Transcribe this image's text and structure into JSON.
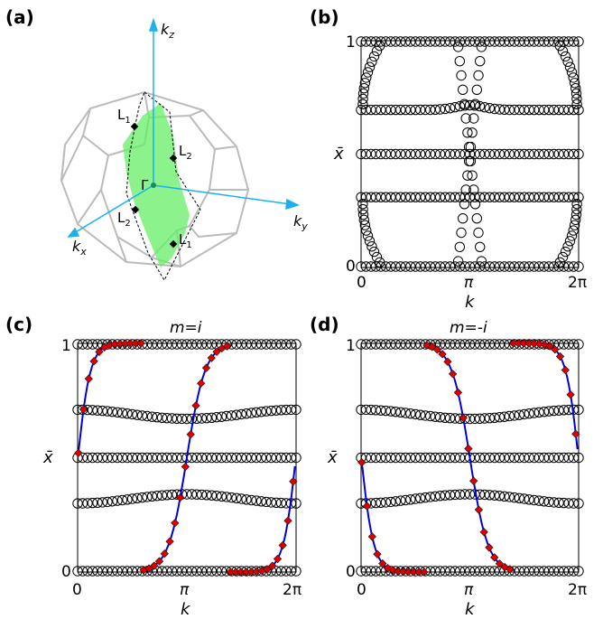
{
  "panel_a": {
    "label": "(a)",
    "axes": {
      "kz": "k",
      "kz_sub": "z",
      "ky": "k",
      "ky_sub": "y",
      "kx": "k",
      "kx_sub": "x"
    },
    "points": {
      "L1_top": "L",
      "L1_top_sub": "1",
      "L2_right": "L",
      "L2_right_sub": "2",
      "Gamma": "Γ",
      "L2_left": "L",
      "L2_left_sub": "2",
      "L1_bottom": "L",
      "L1_bottom_sub": "1"
    },
    "colors": {
      "plane": "#66ee66",
      "axis": "#1ab0f0",
      "zone": "#bbbbbb"
    }
  },
  "panels": {
    "b": {
      "label": "(b)",
      "title": ""
    },
    "c": {
      "label": "(c)",
      "title": "m=i"
    },
    "d": {
      "label": "(d)",
      "title": "m=-i"
    }
  },
  "axis_text": {
    "y_top": "1",
    "y_bottom": "0",
    "y_mid": "x̄",
    "x_ticks": [
      "0",
      "π",
      "2π"
    ],
    "xlabel": "k"
  },
  "colors": {
    "wilson_line": "#0000dd",
    "marker": "#dd0000"
  },
  "chart_data": [
    {
      "panel": "b",
      "type": "scatter",
      "title": "",
      "xlabel": "k",
      "ylabel": "x̄",
      "xlim": [
        0,
        6.2832
      ],
      "ylim": [
        0,
        1
      ],
      "x_ticks": [
        "0",
        "π",
        "2π"
      ],
      "y_ticks": [
        "0",
        "1"
      ],
      "series": [
        {
          "values": "Wannier centers: horizontal bands at x̄ ≈ 0.5, 0.69, 0.31; bands near 0 and 1; X-shaped crossings at k = π and curved branches near k = 0, 2π"
        }
      ]
    },
    {
      "panel": "c",
      "type": "scatter",
      "title": "m=i",
      "xlabel": "k",
      "ylabel": "x̄",
      "xlim": [
        0,
        6.2832
      ],
      "ylim": [
        0,
        1
      ],
      "x_ticks": [
        "0",
        "π",
        "2π"
      ],
      "y_ticks": [
        "0",
        "1"
      ],
      "line": {
        "x": [
          0.05,
          0.15,
          0.3,
          0.5,
          0.8,
          1.2,
          1.8,
          2.4,
          2.8,
          3.0,
          3.14,
          3.3,
          3.5,
          3.9,
          4.5,
          5.0,
          5.4,
          5.7,
          5.9,
          6.05,
          6.2
        ],
        "y": [
          0.5,
          0.62,
          0.78,
          0.9,
          0.97,
          1.0,
          0.0,
          0.02,
          0.08,
          0.15,
          0.5,
          0.8,
          0.9,
          0.96,
          0.99,
          1.0,
          0.0,
          0.01,
          0.05,
          0.2,
          0.5
        ]
      }
    },
    {
      "panel": "d",
      "type": "scatter",
      "title": "m=-i",
      "xlabel": "k",
      "ylabel": "x̄",
      "xlim": [
        0,
        6.2832
      ],
      "ylim": [
        0,
        1
      ],
      "x_ticks": [
        "0",
        "π",
        "2π"
      ],
      "y_ticks": [
        "0",
        "1"
      ]
    }
  ]
}
